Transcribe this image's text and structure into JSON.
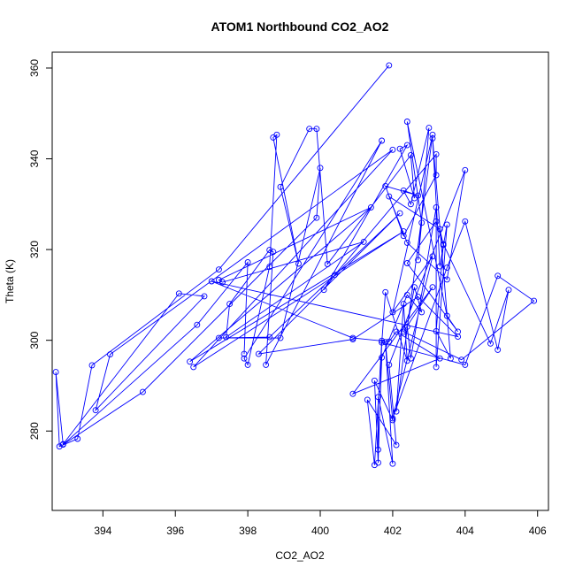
{
  "chart_data": {
    "type": "line",
    "markers": "circle",
    "title": "ATOM1 Northbound CO2_AO2",
    "xlabel": "CO2_AO2",
    "ylabel": "Theta (K)",
    "xlim": [
      392.6,
      406.3
    ],
    "ylim": [
      262.5,
      363.5
    ],
    "xticks": [
      394,
      396,
      398,
      400,
      402,
      404,
      406
    ],
    "yticks": [
      280,
      300,
      320,
      340,
      360
    ],
    "grid": false,
    "legend": "none",
    "colors": {
      "series": "#0000ff",
      "axes": "#000000"
    },
    "series": [
      {
        "points": [
          [
            401.9,
            360.6
          ],
          [
            397.2,
            315.6
          ],
          [
            393.7,
            294.5
          ],
          [
            393.3,
            278.3
          ],
          [
            392.8,
            276.6
          ],
          [
            392.7,
            293.0
          ],
          [
            392.9,
            277.1
          ],
          [
            396.1,
            310.3
          ],
          [
            396.8,
            309.7
          ],
          [
            393.8,
            284.6
          ],
          [
            394.2,
            296.9
          ],
          [
            402.0,
            342.0
          ],
          [
            396.5,
            294.1
          ],
          [
            402.3,
            324.0
          ],
          [
            396.4,
            295.3
          ],
          [
            401.4,
            329.3
          ],
          [
            397.2,
            313.3
          ],
          [
            397.3,
            312.8
          ],
          [
            401.2,
            321.7
          ],
          [
            397.4,
            300.7
          ],
          [
            397.5,
            308.0
          ],
          [
            398.6,
            319.9
          ],
          [
            398.7,
            319.5
          ],
          [
            398.5,
            294.6
          ],
          [
            401.7,
            344.0
          ],
          [
            397.9,
            296.0
          ],
          [
            398.0,
            294.6
          ],
          [
            398.6,
            316.2
          ],
          [
            398.8,
            345.3
          ],
          [
            398.7,
            344.7
          ],
          [
            399.4,
            316.9
          ],
          [
            398.9,
            333.8
          ],
          [
            399.7,
            346.6
          ],
          [
            399.9,
            346.6
          ],
          [
            400.2,
            316.8
          ],
          [
            402.5,
            340.8
          ],
          [
            402.6,
            331.3
          ],
          [
            402.2,
            342.2
          ],
          [
            402.4,
            343.0
          ],
          [
            400.1,
            311.1
          ],
          [
            400.4,
            314.4
          ],
          [
            403.2,
            341.0
          ],
          [
            403.2,
            336.4
          ],
          [
            402.3,
            323.0
          ],
          [
            401.8,
            334.0
          ],
          [
            402.7,
            331.9
          ],
          [
            402.3,
            333.0
          ],
          [
            402.5,
            330.0
          ],
          [
            403.0,
            346.8
          ],
          [
            402.7,
            317.7
          ],
          [
            402.8,
            325.9
          ],
          [
            402.4,
            348.2
          ],
          [
            403.5,
            305.4
          ],
          [
            403.8,
            301.9
          ],
          [
            402.4,
            317.0
          ],
          [
            403.2,
            326.2
          ],
          [
            403.4,
            321.0
          ],
          [
            403.3,
            324.5
          ],
          [
            401.9,
            331.7
          ],
          [
            402.4,
            321.5
          ],
          [
            403.5,
            313.4
          ],
          [
            404.0,
            337.5
          ],
          [
            401.9,
            294.6
          ],
          [
            402.1,
            276.9
          ],
          [
            401.3,
            286.9
          ],
          [
            401.5,
            272.5
          ],
          [
            401.7,
            299.9
          ],
          [
            401.6,
            273.0
          ],
          [
            401.5,
            291.1
          ],
          [
            402.0,
            282.4
          ],
          [
            401.8,
            299.6
          ],
          [
            402.0,
            272.8
          ],
          [
            401.6,
            287.5
          ],
          [
            401.6,
            275.9
          ],
          [
            401.7,
            296.2
          ],
          [
            402.4,
            310.0
          ],
          [
            402.8,
            306.2
          ],
          [
            402.6,
            311.7
          ],
          [
            402.4,
            303.0
          ],
          [
            402.5,
            296.0
          ],
          [
            403.2,
            329.3
          ],
          [
            403.2,
            294.1
          ],
          [
            403.5,
            325.5
          ],
          [
            403.3,
            316.3
          ],
          [
            403.1,
            344.5
          ],
          [
            403.6,
            296.0
          ],
          [
            403.2,
            302.0
          ],
          [
            403.4,
            321.2
          ],
          [
            404.7,
            299.3
          ],
          [
            405.2,
            311.1
          ],
          [
            404.9,
            297.9
          ],
          [
            404.0,
            326.2
          ],
          [
            403.5,
            316.0
          ],
          [
            402.0,
            282.8
          ],
          [
            403.1,
            318.5
          ],
          [
            402.0,
            306.2
          ],
          [
            403.1,
            345.3
          ],
          [
            402.1,
            284.3
          ],
          [
            402.3,
            308.0
          ],
          [
            402.4,
            295.5
          ],
          [
            401.8,
            310.6
          ],
          [
            401.7,
            299.5
          ],
          [
            404.0,
            294.6
          ],
          [
            404.9,
            314.2
          ],
          [
            405.9,
            308.7
          ],
          [
            403.9,
            295.7
          ],
          [
            402.3,
            301.9
          ],
          [
            403.1,
            311.7
          ],
          [
            400.9,
            288.2
          ],
          [
            403.3,
            296.0
          ],
          [
            402.1,
            301.9
          ],
          [
            401.9,
            299.7
          ],
          [
            400.9,
            300.5
          ],
          [
            397.0,
            313.0
          ],
          [
            403.8,
            300.8
          ],
          [
            402.7,
            309.6
          ],
          [
            400.9,
            300.2
          ],
          [
            398.3,
            297.0
          ],
          [
            402.2,
            328.0
          ],
          [
            398.6,
            300.7
          ],
          [
            397.2,
            300.5
          ],
          [
            398.9,
            300.5
          ],
          [
            400.0,
            338.0
          ],
          [
            399.9,
            327.0
          ],
          [
            395.1,
            288.6
          ],
          [
            392.9,
            277.0
          ],
          [
            396.6,
            303.4
          ],
          [
            398.0,
            317.2
          ],
          [
            397.9,
            297.0
          ]
        ]
      }
    ]
  }
}
